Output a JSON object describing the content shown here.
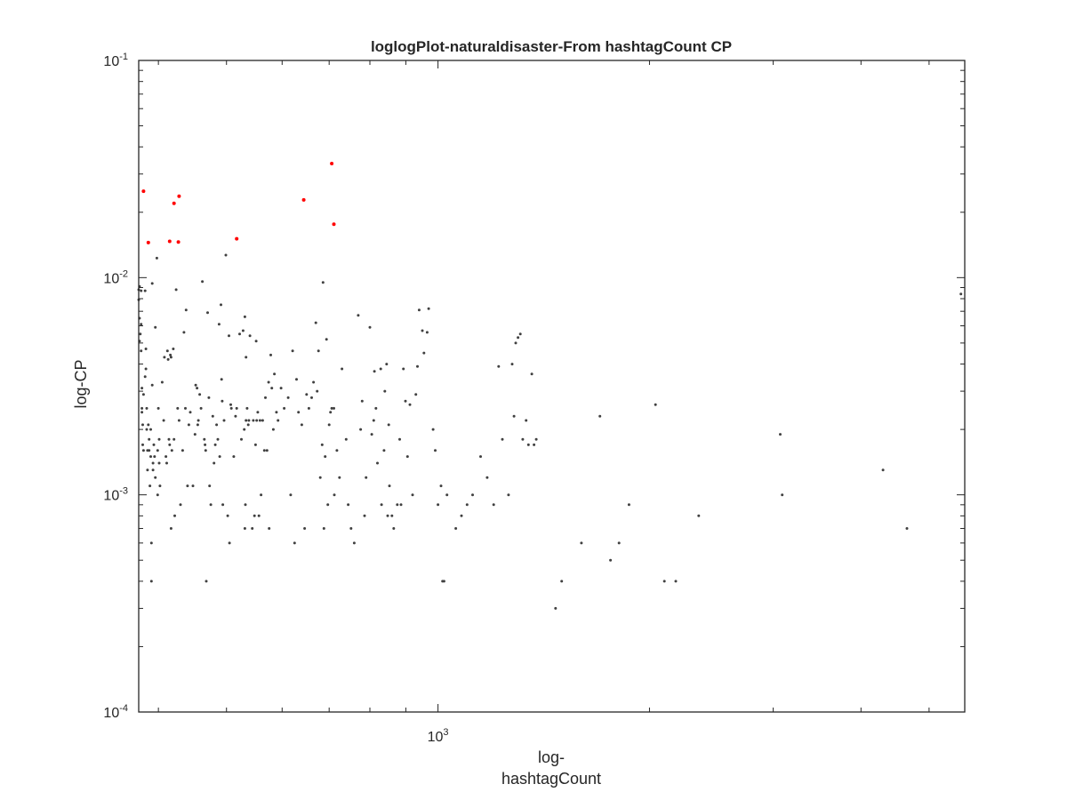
{
  "chart_data": {
    "type": "scatter",
    "title": "loglogPlot-naturaldisaster-From hashtagCount CP",
    "xlabel_lines": [
      "log-",
      "hashtagCount"
    ],
    "ylabel": "log-CP",
    "xscale": "log",
    "yscale": "log",
    "xlim": [
      375,
      5620
    ],
    "ylim": [
      0.0001,
      0.1
    ],
    "grid": false,
    "x_ticks": [
      {
        "value": 1000,
        "base": "10",
        "exp": "3"
      }
    ],
    "y_ticks": [
      {
        "value": 0.1,
        "base": "10",
        "exp": "-1"
      },
      {
        "value": 0.01,
        "base": "10",
        "exp": "-2"
      },
      {
        "value": 0.001,
        "base": "10",
        "exp": "-3"
      },
      {
        "value": 0.0001,
        "base": "10",
        "exp": "-4"
      }
    ],
    "colors": {
      "normal": "#404040",
      "highlight": "#ff0000",
      "axis": "#262626"
    },
    "series": [
      {
        "kind": "highlight",
        "points": [
          [
            381,
            0.025
          ],
          [
            387,
            0.0145
          ],
          [
            415,
            0.0147
          ],
          [
            421,
            0.022
          ],
          [
            427,
            0.0146
          ],
          [
            428,
            0.0237
          ],
          [
            517,
            0.0151
          ],
          [
            644,
            0.0228
          ],
          [
            706,
            0.0335
          ],
          [
            711,
            0.0176
          ]
        ]
      },
      {
        "kind": "normal",
        "points": [
          [
            375,
            0.0088
          ],
          [
            375,
            0.0079
          ],
          [
            376,
            0.0091
          ],
          [
            376,
            0.0065
          ],
          [
            376,
            0.0051
          ],
          [
            377,
            0.0055
          ],
          [
            378,
            0.0087
          ],
          [
            378,
            0.0061
          ],
          [
            378,
            0.0046
          ],
          [
            379,
            0.0031
          ],
          [
            379,
            0.0025
          ],
          [
            379,
            0.0024
          ],
          [
            380,
            0.0021
          ],
          [
            380,
            0.0017
          ],
          [
            381,
            0.0029
          ],
          [
            381,
            0.0016
          ],
          [
            383,
            0.0087
          ],
          [
            383,
            0.0035
          ],
          [
            384,
            0.0047
          ],
          [
            384,
            0.0038
          ],
          [
            385,
            0.0025
          ],
          [
            385,
            0.002
          ],
          [
            386,
            0.0016
          ],
          [
            386,
            0.0013
          ],
          [
            387,
            0.0021
          ],
          [
            388,
            0.0018
          ],
          [
            388,
            0.0016
          ],
          [
            389,
            0.0011
          ],
          [
            390,
            0.002
          ],
          [
            390,
            0.0015
          ],
          [
            391,
            0.0006
          ],
          [
            391,
            0.0004
          ],
          [
            392,
            0.0094
          ],
          [
            392,
            0.0032
          ],
          [
            393,
            0.0014
          ],
          [
            393,
            0.0013
          ],
          [
            394,
            0.0017
          ],
          [
            395,
            0.0015
          ],
          [
            396,
            0.0059
          ],
          [
            396,
            0.0012
          ],
          [
            398,
            0.0123
          ],
          [
            399,
            0.0016
          ],
          [
            399,
            0.001
          ],
          [
            400,
            0.0025
          ],
          [
            401,
            0.0018
          ],
          [
            401,
            0.0014
          ],
          [
            402,
            0.0011
          ],
          [
            405,
            0.0033
          ],
          [
            407,
            0.0022
          ],
          [
            408,
            0.0043
          ],
          [
            410,
            0.0015
          ],
          [
            411,
            0.0014
          ],
          [
            412,
            0.0046
          ],
          [
            413,
            0.0042
          ],
          [
            414,
            0.0018
          ],
          [
            415,
            0.0017
          ],
          [
            416,
            0.0044
          ],
          [
            417,
            0.0043
          ],
          [
            417,
            0.0007
          ],
          [
            418,
            0.0016
          ],
          [
            420,
            0.0047
          ],
          [
            421,
            0.0018
          ],
          [
            422,
            0.0008
          ],
          [
            424,
            0.0088
          ],
          [
            426,
            0.0025
          ],
          [
            428,
            0.0022
          ],
          [
            430,
            0.0009
          ],
          [
            433,
            0.0016
          ],
          [
            435,
            0.0056
          ],
          [
            437,
            0.0025
          ],
          [
            438,
            0.0071
          ],
          [
            440,
            0.0011
          ],
          [
            442,
            0.0021
          ],
          [
            444,
            0.0024
          ],
          [
            448,
            0.0011
          ],
          [
            451,
            0.0019
          ],
          [
            452,
            0.0032
          ],
          [
            454,
            0.0031
          ],
          [
            455,
            0.0021
          ],
          [
            456,
            0.0022
          ],
          [
            458,
            0.0029
          ],
          [
            460,
            0.0025
          ],
          [
            462,
            0.0096
          ],
          [
            465,
            0.0018
          ],
          [
            466,
            0.0017
          ],
          [
            467,
            0.0016
          ],
          [
            468,
            0.0004
          ],
          [
            470,
            0.0069
          ],
          [
            472,
            0.0028
          ],
          [
            473,
            0.0011
          ],
          [
            475,
            0.0009
          ],
          [
            478,
            0.0023
          ],
          [
            480,
            0.0014
          ],
          [
            482,
            0.0017
          ],
          [
            484,
            0.0021
          ],
          [
            486,
            0.0018
          ],
          [
            488,
            0.0061
          ],
          [
            489,
            0.0015
          ],
          [
            491,
            0.0075
          ],
          [
            492,
            0.0034
          ],
          [
            493,
            0.0027
          ],
          [
            494,
            0.0009
          ],
          [
            496,
            0.0022
          ],
          [
            499,
            0.0127
          ],
          [
            502,
            0.0008
          ],
          [
            504,
            0.0054
          ],
          [
            505,
            0.0006
          ],
          [
            507,
            0.0026
          ],
          [
            508,
            0.0025
          ],
          [
            512,
            0.0015
          ],
          [
            515,
            0.0023
          ],
          [
            517,
            0.0025
          ],
          [
            522,
            0.0055
          ],
          [
            525,
            0.0018
          ],
          [
            528,
            0.0057
          ],
          [
            530,
            0.002
          ],
          [
            531,
            0.0007
          ],
          [
            531,
            0.0066
          ],
          [
            532,
            0.0009
          ],
          [
            533,
            0.0043
          ],
          [
            533,
            0.0022
          ],
          [
            535,
            0.0025
          ],
          [
            537,
            0.0021
          ],
          [
            538,
            0.0022
          ],
          [
            540,
            0.0054
          ],
          [
            544,
            0.0007
          ],
          [
            546,
            0.0022
          ],
          [
            548,
            0.0008
          ],
          [
            550,
            0.0017
          ],
          [
            551,
            0.0051
          ],
          [
            552,
            0.0022
          ],
          [
            554,
            0.0024
          ],
          [
            556,
            0.0008
          ],
          [
            558,
            0.0022
          ],
          [
            560,
            0.001
          ],
          [
            563,
            0.0022
          ],
          [
            566,
            0.0016
          ],
          [
            568,
            0.0028
          ],
          [
            571,
            0.0016
          ],
          [
            574,
            0.0033
          ],
          [
            575,
            0.0007
          ],
          [
            578,
            0.0044
          ],
          [
            580,
            0.0031
          ],
          [
            583,
            0.002
          ],
          [
            585,
            0.0036
          ],
          [
            589,
            0.0024
          ],
          [
            592,
            0.0022
          ],
          [
            598,
            0.0031
          ],
          [
            604,
            0.0025
          ],
          [
            612,
            0.0028
          ],
          [
            617,
            0.001
          ],
          [
            621,
            0.0046
          ],
          [
            625,
            0.0006
          ],
          [
            629,
            0.0034
          ],
          [
            633,
            0.0024
          ],
          [
            640,
            0.0021
          ],
          [
            646,
            0.0007
          ],
          [
            650,
            0.0029
          ],
          [
            655,
            0.0025
          ],
          [
            661,
            0.0028
          ],
          [
            665,
            0.0033
          ],
          [
            670,
            0.0062
          ],
          [
            673,
            0.003
          ],
          [
            676,
            0.0046
          ],
          [
            680,
            0.0012
          ],
          [
            684,
            0.0017
          ],
          [
            686,
            0.0095
          ],
          [
            688,
            0.0007
          ],
          [
            691,
            0.0015
          ],
          [
            694,
            0.0052
          ],
          [
            697,
            0.0009
          ],
          [
            700,
            0.0021
          ],
          [
            703,
            0.0024
          ],
          [
            706,
            0.0025
          ],
          [
            711,
            0.0025
          ],
          [
            712,
            0.001
          ],
          [
            718,
            0.0016
          ],
          [
            724,
            0.0012
          ],
          [
            730,
            0.0038
          ],
          [
            740,
            0.0018
          ],
          [
            745,
            0.0009
          ],
          [
            752,
            0.0007
          ],
          [
            760,
            0.0006
          ],
          [
            770,
            0.0067
          ],
          [
            776,
            0.002
          ],
          [
            780,
            0.0027
          ],
          [
            786,
            0.0008
          ],
          [
            790,
            0.0012
          ],
          [
            800,
            0.0059
          ],
          [
            805,
            0.0019
          ],
          [
            810,
            0.0022
          ],
          [
            812,
            0.0037
          ],
          [
            816,
            0.0025
          ],
          [
            820,
            0.0014
          ],
          [
            829,
            0.0038
          ],
          [
            831,
            0.0009
          ],
          [
            838,
            0.0016
          ],
          [
            840,
            0.003
          ],
          [
            845,
            0.004
          ],
          [
            848,
            0.0008
          ],
          [
            851,
            0.0021
          ],
          [
            853,
            0.0011
          ],
          [
            860,
            0.0008
          ],
          [
            865,
            0.0007
          ],
          [
            875,
            0.0009
          ],
          [
            882,
            0.0018
          ],
          [
            886,
            0.0009
          ],
          [
            893,
            0.0038
          ],
          [
            899,
            0.0027
          ],
          [
            905,
            0.0015
          ],
          [
            912,
            0.0026
          ],
          [
            920,
            0.001
          ],
          [
            930,
            0.0029
          ],
          [
            935,
            0.0039
          ],
          [
            940,
            0.0071
          ],
          [
            950,
            0.0057
          ],
          [
            955,
            0.0045
          ],
          [
            965,
            0.0056
          ],
          [
            970,
            0.0072
          ],
          [
            984,
            0.002
          ],
          [
            991,
            0.0016
          ],
          [
            1000,
            0.0009
          ],
          [
            1010,
            0.0011
          ],
          [
            1015,
            0.0004
          ],
          [
            1020,
            0.0004
          ],
          [
            1030,
            0.001
          ],
          [
            1060,
            0.0007
          ],
          [
            1080,
            0.0008
          ],
          [
            1100,
            0.0009
          ],
          [
            1120,
            0.001
          ],
          [
            1150,
            0.0015
          ],
          [
            1175,
            0.0012
          ],
          [
            1200,
            0.0009
          ],
          [
            1220,
            0.0039
          ],
          [
            1235,
            0.0018
          ],
          [
            1260,
            0.001
          ],
          [
            1275,
            0.004
          ],
          [
            1283,
            0.0023
          ],
          [
            1290,
            0.005
          ],
          [
            1300,
            0.0053
          ],
          [
            1310,
            0.0055
          ],
          [
            1320,
            0.0018
          ],
          [
            1335,
            0.0022
          ],
          [
            1345,
            0.0017
          ],
          [
            1360,
            0.0036
          ],
          [
            1370,
            0.0017
          ],
          [
            1380,
            0.0018
          ],
          [
            1470,
            0.0003
          ],
          [
            1500,
            0.0004
          ],
          [
            1600,
            0.0006
          ],
          [
            1700,
            0.0023
          ],
          [
            1760,
            0.0005
          ],
          [
            1810,
            0.0006
          ],
          [
            1870,
            0.0009
          ],
          [
            2040,
            0.0026
          ],
          [
            2100,
            0.0004
          ],
          [
            2180,
            0.0004
          ],
          [
            2350,
            0.0008
          ],
          [
            3070,
            0.0019
          ],
          [
            3090,
            0.001
          ],
          [
            4300,
            0.0013
          ],
          [
            4650,
            0.0007
          ],
          [
            5550,
            0.0084
          ]
        ]
      }
    ]
  }
}
